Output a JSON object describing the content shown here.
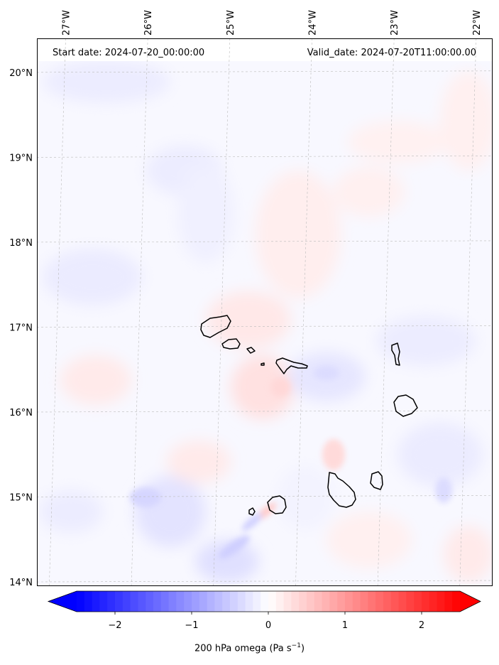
{
  "header": {
    "start_date": "Start date: 2024-07-20_00:00:00",
    "valid_date": "Valid_date: 2024-07-20T11:00:00.00"
  },
  "axes": {
    "lon_labels": [
      "27°W",
      "26°W",
      "25°W",
      "24°W",
      "23°W",
      "22°W"
    ],
    "lat_labels": [
      "20°N",
      "19°N",
      "18°N",
      "17°N",
      "16°N",
      "15°N",
      "14°N"
    ],
    "lon_values": [
      -27,
      -26,
      -25,
      -24,
      -23,
      -22
    ],
    "lat_values": [
      20,
      19,
      18,
      17,
      16,
      15,
      14
    ],
    "lon_range": [
      -27.35,
      -21.8
    ],
    "lat_range": [
      13.95,
      20.4
    ],
    "gridlines": true
  },
  "colorbar": {
    "ticks": [
      "−2",
      "−1",
      "0",
      "1",
      "2"
    ],
    "tick_values": [
      -2,
      -1,
      0,
      1,
      2
    ],
    "range": [
      -2.5,
      2.5
    ],
    "extend": "both",
    "cmap": "bwr",
    "label_main": "200 hPa omega (Pa s",
    "label_exp": "−1",
    "label_end": ")"
  },
  "colors": {
    "negative": "#0000ff",
    "neutral": "#ffffff",
    "positive": "#ff0000",
    "coast": "#000000",
    "grid": "#bbbbbb"
  }
}
